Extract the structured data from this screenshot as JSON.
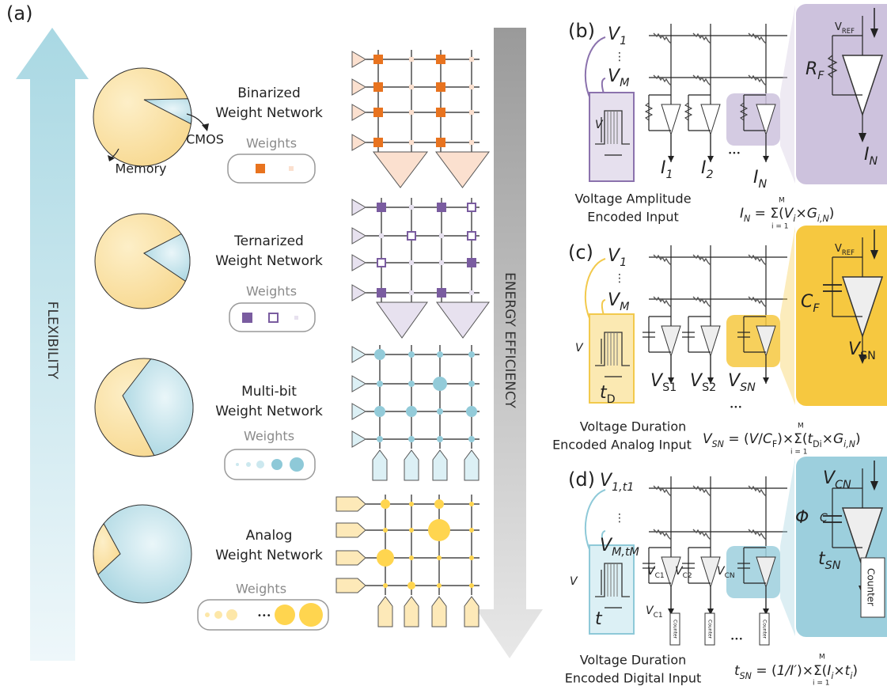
{
  "panel_a": {
    "label": "(a)",
    "flexibility": "FLEXIBILITY",
    "energy_efficiency": "ENERGY EFFICIENCY",
    "cmos": "CMOS",
    "memory": "Memory",
    "networks": [
      {
        "name": [
          "Binarized",
          "Weight Network"
        ],
        "weights": "Weights"
      },
      {
        "name": [
          "Ternarized",
          "Weight Network"
        ],
        "weights": "Weights"
      },
      {
        "name": [
          "Multi-bit",
          "Weight Network"
        ],
        "weights": "Weights"
      },
      {
        "name": [
          "Analog",
          "Weight Network"
        ],
        "weights": "Weights",
        "ellipsis": "•••"
      }
    ]
  },
  "panel_b": {
    "label": "(b)",
    "v1": [
      [
        "V",
        "i"
      ],
      [
        "1",
        "si"
      ]
    ],
    "dots": "⋮",
    "vm": [
      [
        "V",
        "i"
      ],
      [
        "M",
        "si"
      ]
    ],
    "v": [
      [
        "V",
        "i"
      ]
    ],
    "ellipsis": "•••",
    "i1": [
      [
        "I",
        "i"
      ],
      [
        "1",
        "si"
      ]
    ],
    "i2": [
      [
        "I",
        "i"
      ],
      [
        "2",
        "si"
      ]
    ],
    "in": [
      [
        "I",
        "i"
      ],
      [
        "N",
        "si"
      ]
    ],
    "vref": [
      [
        "V",
        ""
      ],
      [
        "REF",
        "s"
      ]
    ],
    "rf": [
      [
        "R",
        "i"
      ],
      [
        "F",
        "si"
      ]
    ],
    "in_zoom": [
      [
        "I",
        "i"
      ],
      [
        "N",
        "si"
      ]
    ],
    "caption": [
      "Voltage Amplitude",
      "Encoded Input"
    ],
    "equation": [
      [
        "I",
        "i"
      ],
      [
        "N",
        "si"
      ],
      [
        " = Σ(",
        ""
      ],
      [
        "V",
        "i"
      ],
      [
        "i",
        "si"
      ],
      [
        "×",
        ""
      ],
      [
        "G",
        "i"
      ],
      [
        "i,N",
        "si"
      ],
      [
        ")",
        ""
      ]
    ],
    "sum_upper": "M",
    "sum_lower": "i = 1"
  },
  "panel_c": {
    "label": "(c)",
    "v1": [
      [
        "V",
        "i"
      ],
      [
        "1",
        "si"
      ]
    ],
    "dots": "⋮",
    "vm": [
      [
        "V",
        "i"
      ],
      [
        "M",
        "si"
      ]
    ],
    "v": [
      [
        "V",
        "i"
      ]
    ],
    "td": [
      [
        "t",
        "i"
      ],
      [
        "D",
        "s"
      ]
    ],
    "vs1": [
      [
        "V",
        "i"
      ],
      [
        "S1",
        "s"
      ]
    ],
    "vs2": [
      [
        "V",
        "i"
      ],
      [
        "S2",
        "s"
      ]
    ],
    "vsn": [
      [
        "V",
        "i"
      ],
      [
        "SN",
        "si"
      ]
    ],
    "ellipsis": "•••",
    "vref": [
      [
        "V",
        ""
      ],
      [
        "REF",
        "s"
      ]
    ],
    "cf": [
      [
        "C",
        "i"
      ],
      [
        "F",
        "si"
      ]
    ],
    "vsn_zoom": [
      [
        "V",
        "i"
      ],
      [
        "SN",
        "s"
      ]
    ],
    "caption": [
      "Voltage Duration",
      "Encoded Analog Input"
    ],
    "equation": [
      [
        "V",
        "i"
      ],
      [
        "SN",
        "si"
      ],
      [
        " = (",
        ""
      ],
      [
        "V",
        "i"
      ],
      [
        "/",
        ""
      ],
      [
        "C",
        "i"
      ],
      [
        "F",
        "s"
      ],
      [
        ")×Σ(",
        ""
      ],
      [
        "t",
        "i"
      ],
      [
        "Di",
        "s"
      ],
      [
        "×",
        ""
      ],
      [
        "G",
        "i"
      ],
      [
        "i,N",
        "si"
      ],
      [
        ")",
        ""
      ]
    ],
    "sum_upper": "M",
    "sum_lower": "i = 1"
  },
  "panel_d": {
    "label": "(d)",
    "v1": [
      [
        "V",
        "i"
      ],
      [
        "1,t1",
        "si"
      ]
    ],
    "dots": "⋮",
    "vm": [
      [
        "V",
        "i"
      ],
      [
        "M,tM",
        "si"
      ]
    ],
    "v": [
      [
        "V",
        "i"
      ]
    ],
    "t": [
      [
        "t",
        "i"
      ]
    ],
    "vc1": [
      [
        "V",
        "i"
      ],
      [
        "C1",
        "s"
      ]
    ],
    "vc2": [
      [
        "V",
        "i"
      ],
      [
        "C2",
        "s"
      ]
    ],
    "vcn": [
      [
        "V",
        "i"
      ],
      [
        "CN",
        "s"
      ]
    ],
    "vc1_low": [
      [
        "V",
        "i"
      ],
      [
        "C1",
        "s"
      ]
    ],
    "counter": "Counter",
    "ellipsis": "•••",
    "vcn_zoom": [
      [
        "V",
        "i"
      ],
      [
        "CN",
        "si"
      ]
    ],
    "phi": [
      [
        "Φ",
        "i"
      ]
    ],
    "c": [
      [
        "C",
        "i"
      ]
    ],
    "tsn": [
      [
        "t",
        "i"
      ],
      [
        "SN",
        "si"
      ]
    ],
    "counter_zoom": "Counter",
    "caption": [
      "Voltage Duration",
      "Encoded Digital Input"
    ],
    "equation": [
      [
        "t",
        "i"
      ],
      [
        "SN",
        "si"
      ],
      [
        " = (",
        ""
      ],
      [
        "1/I′",
        "i"
      ],
      [
        ")×Σ(",
        ""
      ],
      [
        "I",
        "i"
      ],
      [
        "i",
        "si"
      ],
      [
        "×",
        ""
      ],
      [
        "t",
        "i"
      ],
      [
        "i",
        "si"
      ],
      [
        ")",
        ""
      ]
    ],
    "sum_upper": "M",
    "sum_lower": "i = 1"
  }
}
